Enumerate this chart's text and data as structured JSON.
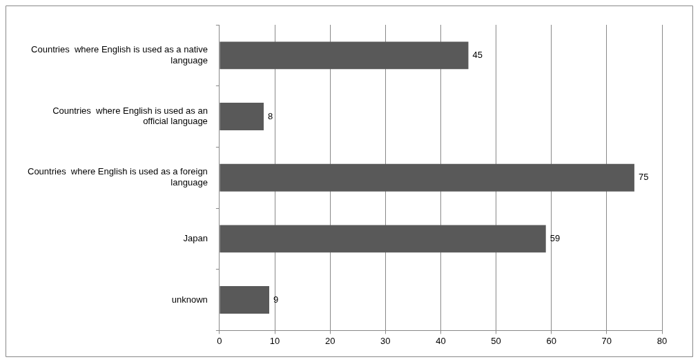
{
  "chart_data": {
    "type": "bar",
    "orientation": "horizontal",
    "categories": [
      "Countries  where English is used as a native language",
      "Countries  where English is used as an official language",
      "Countries  where English is used as a foreign language",
      "Japan",
      "unknown"
    ],
    "values": [
      45,
      8,
      75,
      59,
      9
    ],
    "color": "#595959",
    "xlim": [
      0,
      80
    ],
    "xticks": [
      0,
      10,
      20,
      30,
      40,
      50,
      60,
      70,
      80
    ],
    "grid": "x",
    "data_labels": true,
    "legend": false
  }
}
